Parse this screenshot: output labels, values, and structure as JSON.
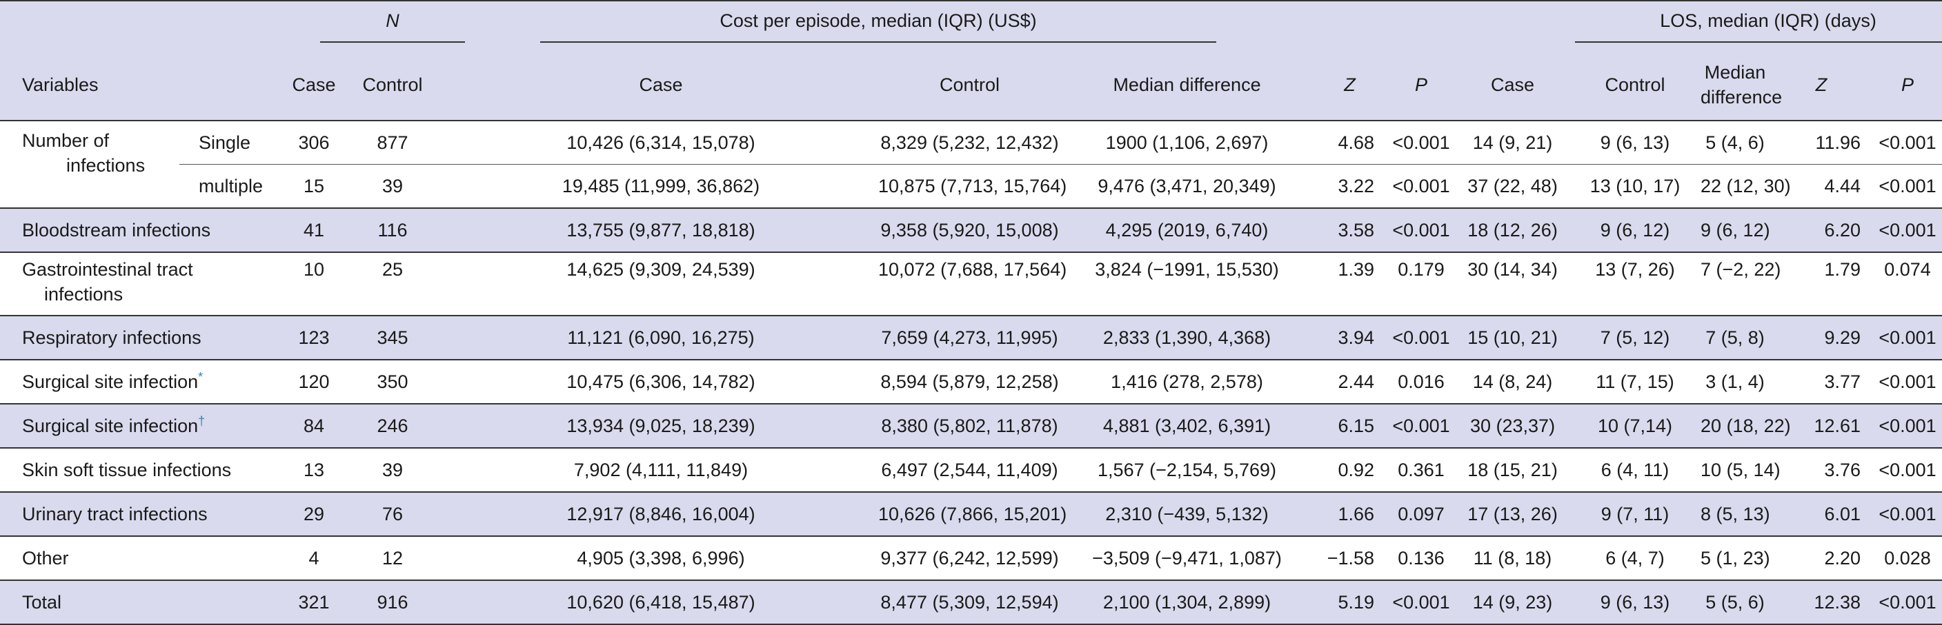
{
  "header": {
    "n_group": "N",
    "cost_group": "Cost per episode, median (IQR) (US$)",
    "los_group": "LOS, median (IQR) (days)",
    "variables": "Variables",
    "case": "Case",
    "control": "Control",
    "median_difference": "Median difference",
    "z": "Z",
    "p": "P",
    "median_difference_l1": "Median",
    "median_difference_l2": "difference"
  },
  "rows": [
    {
      "variable": "Number of",
      "variable2": "infections",
      "sub": "Single",
      "n_case": "306",
      "n_control": "877",
      "cost_case": "10,426 (6,314, 15,078)",
      "cost_control": "8,329 (5,232, 12,432)",
      "cost_diff": "1900 (1,106, 2,697)",
      "cost_z": "4.68",
      "cost_p": "<0.001",
      "los_case": "14 (9, 21)",
      "los_control": "9 (6, 13)",
      "los_diff": "5 (4, 6)",
      "los_z": "11.96",
      "los_p": "<0.001"
    },
    {
      "sub": "multiple",
      "n_case": "15",
      "n_control": "39",
      "cost_case": "19,485 (11,999, 36,862)",
      "cost_control": "10,875 (7,713, 15,764)",
      "cost_diff": "9,476 (3,471, 20,349)",
      "cost_z": "3.22",
      "cost_p": "<0.001",
      "los_case": "37 (22, 48)",
      "los_control": "13 (10, 17)",
      "los_diff": "22 (12, 30)",
      "los_z": "4.44",
      "los_p": "<0.001"
    },
    {
      "variable": "Bloodstream infections",
      "n_case": "41",
      "n_control": "116",
      "cost_case": "13,755 (9,877, 18,818)",
      "cost_control": "9,358 (5,920, 15,008)",
      "cost_diff": "4,295 (2019, 6,740)",
      "cost_z": "3.58",
      "cost_p": "<0.001",
      "los_case": "18 (12, 26)",
      "los_control": "9 (6, 12)",
      "los_diff": "9 (6, 12)",
      "los_z": "6.20",
      "los_p": "<0.001"
    },
    {
      "variable": "Gastrointestinal tract",
      "variable2": "infections",
      "n_case": "10",
      "n_control": "25",
      "cost_case": "14,625 (9,309, 24,539)",
      "cost_control": "10,072 (7,688, 17,564)",
      "cost_diff": "3,824 (−1991, 15,530)",
      "cost_z": "1.39",
      "cost_p": "0.179",
      "los_case": "30 (14, 34)",
      "los_control": "13 (7, 26)",
      "los_diff": "7 (−2, 22)",
      "los_z": "1.79",
      "los_p": "0.074"
    },
    {
      "variable": "Respiratory infections",
      "n_case": "123",
      "n_control": "345",
      "cost_case": "11,121 (6,090, 16,275)",
      "cost_control": "7,659 (4,273, 11,995)",
      "cost_diff": "2,833 (1,390, 4,368)",
      "cost_z": "3.94",
      "cost_p": "<0.001",
      "los_case": "15 (10, 21)",
      "los_control": "7 (5, 12)",
      "los_diff": "7 (5, 8)",
      "los_z": "9.29",
      "los_p": "<0.001"
    },
    {
      "variable": "Surgical site infection",
      "mark": "*",
      "n_case": "120",
      "n_control": "350",
      "cost_case": "10,475 (6,306, 14,782)",
      "cost_control": "8,594 (5,879, 12,258)",
      "cost_diff": "1,416 (278, 2,578)",
      "cost_z": "2.44",
      "cost_p": "0.016",
      "los_case": "14 (8, 24)",
      "los_control": "11 (7, 15)",
      "los_diff": "3 (1, 4)",
      "los_z": "3.77",
      "los_p": "<0.001"
    },
    {
      "variable": "Surgical site infection",
      "mark": "†",
      "n_case": "84",
      "n_control": "246",
      "cost_case": "13,934 (9,025, 18,239)",
      "cost_control": "8,380 (5,802, 11,878)",
      "cost_diff": "4,881 (3,402, 6,391)",
      "cost_z": "6.15",
      "cost_p": "<0.001",
      "los_case": "30 (23,37)",
      "los_control": "10 (7,14)",
      "los_diff": "20 (18, 22)",
      "los_z": "12.61",
      "los_p": "<0.001"
    },
    {
      "variable": "Skin soft tissue infections",
      "n_case": "13",
      "n_control": "39",
      "cost_case": "7,902 (4,111, 11,849)",
      "cost_control": "6,497 (2,544, 11,409)",
      "cost_diff": "1,567 (−2,154, 5,769)",
      "cost_z": "0.92",
      "cost_p": "0.361",
      "los_case": "18 (15, 21)",
      "los_control": "6 (4, 11)",
      "los_diff": "10 (5, 14)",
      "los_z": "3.76",
      "los_p": "<0.001"
    },
    {
      "variable": "Urinary tract infections",
      "n_case": "29",
      "n_control": "76",
      "cost_case": "12,917 (8,846, 16,004)",
      "cost_control": "10,626 (7,866, 15,201)",
      "cost_diff": "2,310 (−439, 5,132)",
      "cost_z": "1.66",
      "cost_p": "0.097",
      "los_case": "17 (13, 26)",
      "los_control": "9 (7, 11)",
      "los_diff": "8 (5, 13)",
      "los_z": "6.01",
      "los_p": "<0.001"
    },
    {
      "variable": "Other",
      "n_case": "4",
      "n_control": "12",
      "cost_case": "4,905 (3,398, 6,996)",
      "cost_control": "9,377 (6,242, 12,599)",
      "cost_diff": "−3,509 (−9,471, 1,087)",
      "cost_z": "−1.58",
      "cost_p": "0.136",
      "los_case": "11 (8, 18)",
      "los_control": "6 (4, 7)",
      "los_diff": "5 (1, 23)",
      "los_z": "2.20",
      "los_p": "0.028"
    },
    {
      "variable": "Total",
      "n_case": "321",
      "n_control": "916",
      "cost_case": "10,620 (6,418, 15,487)",
      "cost_control": "8,477 (5,309, 12,594)",
      "cost_diff": "2,100 (1,304, 2,899)",
      "cost_z": "5.19",
      "cost_p": "<0.001",
      "los_case": "14 (9, 23)",
      "los_control": "9 (6, 13)",
      "los_diff": "5 (5, 6)",
      "los_z": "12.38",
      "los_p": "<0.001"
    }
  ]
}
